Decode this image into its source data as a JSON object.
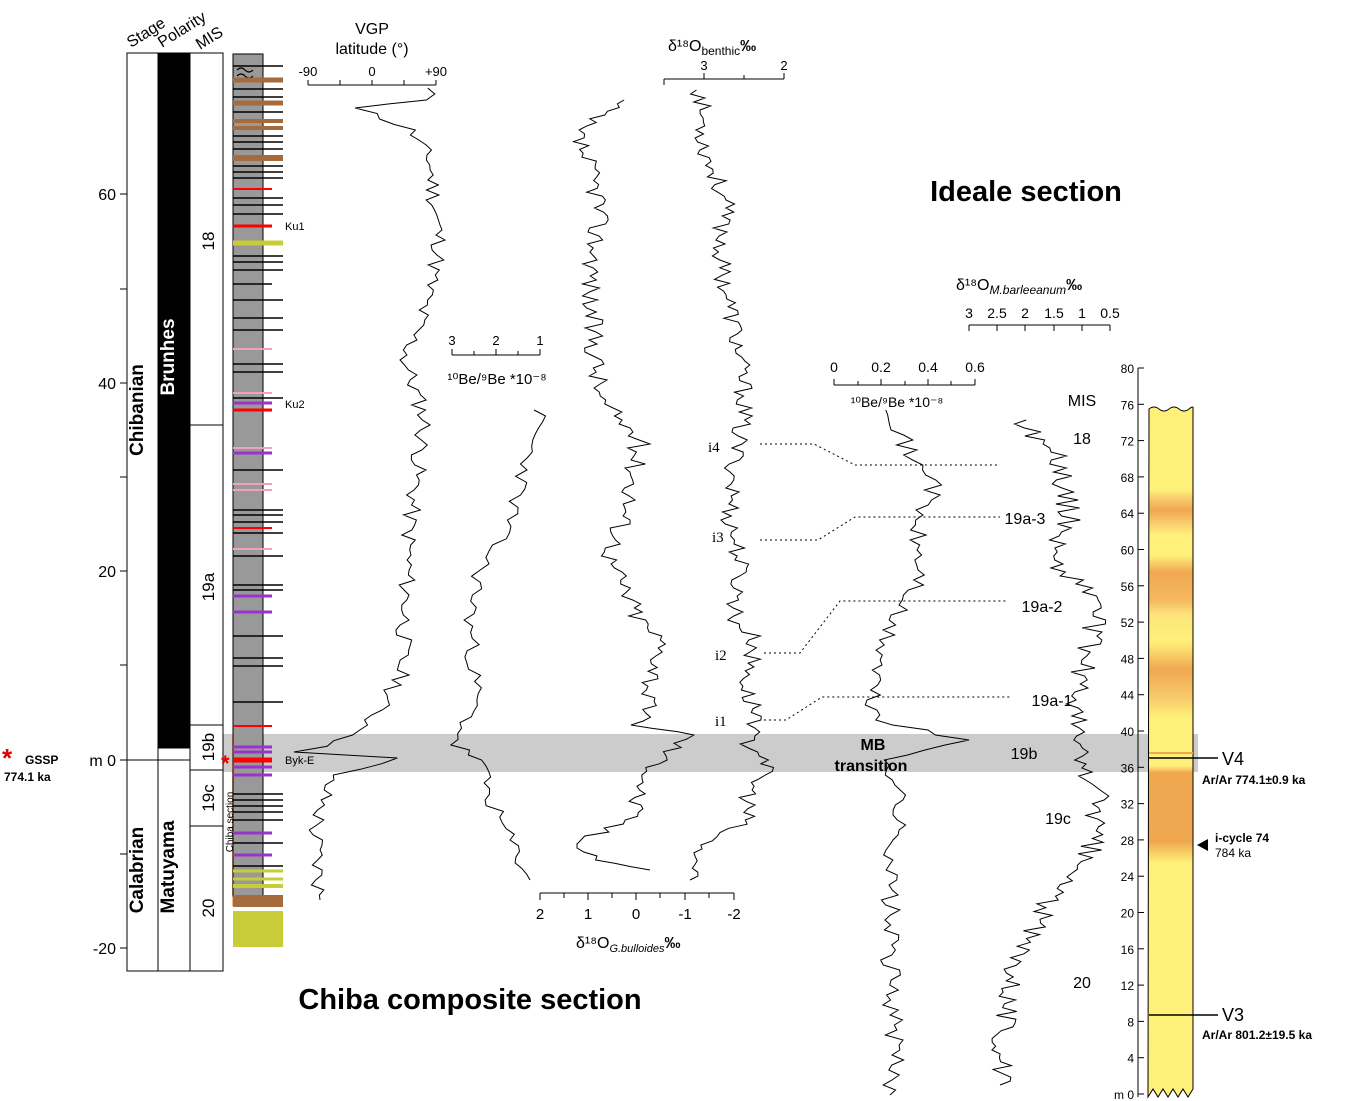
{
  "titles": {
    "chiba": "Chiba composite section",
    "ideale": "Ideale section"
  },
  "chiba_column": {
    "headers": {
      "stage": "Stage",
      "polarity": "Polarity",
      "mis": "MIS"
    },
    "depth_unit": "m",
    "depth_ticks": [
      {
        "value": 60,
        "label": "60"
      },
      {
        "value": 40,
        "label": "40"
      },
      {
        "value": 20,
        "label": "20"
      },
      {
        "value": 0,
        "label": "m 0"
      },
      {
        "value": -20,
        "label": "-20"
      }
    ],
    "stages": {
      "upper": "Chibanian",
      "lower": "Calabrian"
    },
    "polarity": {
      "upper": "Brunhes",
      "lower": "Matuyama"
    },
    "mis_labels": [
      "18",
      "19a",
      "19b",
      "19c",
      "20"
    ],
    "gssp": {
      "label": "GSSP",
      "age": "774.1 ka",
      "marker": "*"
    },
    "chiba_section_label": "Chiba section",
    "tephra_labels": [
      "Ku1",
      "Ku2",
      "Byk-E"
    ]
  },
  "vgp_axis": {
    "title_line1": "VGP",
    "title_line2": "latitude (°)",
    "ticks": [
      "-90",
      "0",
      "+90"
    ]
  },
  "be_chiba_axis": {
    "ticks": [
      "3",
      "2",
      "1"
    ],
    "title": "¹⁰Be/⁹Be *10⁻⁸"
  },
  "gbulloides_axis": {
    "ticks": [
      "2",
      "1",
      "0",
      "-1",
      "-2"
    ],
    "title": "δ¹⁸O",
    "subscript": "G.bulloides",
    "unit": "‰"
  },
  "benthic_axis": {
    "ticks": [
      "3",
      "2"
    ],
    "title": "δ¹⁸O",
    "subscript": "benthic",
    "unit": "‰"
  },
  "icycle_labels": [
    "i4",
    "i3",
    "i2",
    "i1"
  ],
  "mb_transition": {
    "line1": "MB",
    "line2": "transition"
  },
  "be_ideale_axis": {
    "ticks": [
      "0",
      "0.2",
      "0.4",
      "0.6"
    ],
    "title": "¹⁰Be/⁹Be *10⁻⁸"
  },
  "barleeanum_axis": {
    "ticks": [
      "3",
      "2.5",
      "2",
      "1.5",
      "1",
      "0.5"
    ],
    "title": "δ¹⁸O",
    "subscript": "M.barleeanum",
    "unit": "‰"
  },
  "ideale_mis": {
    "header": "MIS",
    "labels": [
      "18",
      "19a-3",
      "19a-2",
      "19a-1",
      "19b",
      "19c",
      "20"
    ]
  },
  "ideale_column": {
    "depth_ticks": [
      "80",
      "76",
      "72",
      "68",
      "64",
      "60",
      "56",
      "52",
      "48",
      "44",
      "40",
      "36",
      "32",
      "28",
      "24",
      "20",
      "16",
      "12",
      "8",
      "4",
      "m 0"
    ],
    "markers": {
      "v4": "V4",
      "v4_age": "Ar/Ar 774.1±0.9 ka",
      "icycle": "i-cycle 74",
      "icycle_age": "784 ka",
      "v3": "V3",
      "v3_age": "Ar/Ar 801.2±19.5 ka"
    }
  },
  "colors": {
    "brunhes_black": "#000000",
    "lithology_grey": "#999999",
    "tephra_red": "#ff0000",
    "tephra_purple": "#9933cc",
    "tephra_pink": "#f0a0c0",
    "tephra_brown": "#a56b3c",
    "tephra_yellowgreen": "#c8cc38",
    "section_orange": "#f5b88a",
    "band_grey": "#cccccc",
    "ideale_yellow": "#fff07a",
    "ideale_orange": "#f0a850"
  }
}
